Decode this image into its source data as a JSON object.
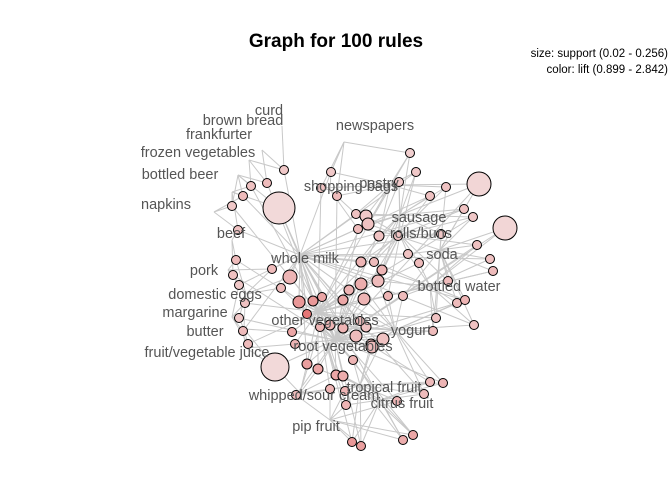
{
  "graph": {
    "title": "Graph for 100 rules",
    "legend": {
      "size": "size: support (0.02 - 0.256)",
      "color": "color: lift (0.899 - 2.842)"
    },
    "items": [
      "curd",
      "brown bread",
      "frankfurter",
      "frozen vegetables",
      "bottled beer",
      "napkins",
      "beef",
      "pork",
      "domestic eggs",
      "margarine",
      "butter",
      "fruit/vegetable juice",
      "whipped/sour cream",
      "pip fruit",
      "newspapers",
      "shopping bags",
      "pastry",
      "sausage",
      "rolls/buns",
      "soda",
      "bottled water",
      "yogurt",
      "tropical fruit",
      "citrus fruit",
      "whole milk",
      "other vegetables",
      "root vegetables"
    ],
    "colors": {
      "low_lift": "#f4e4e4",
      "high_lift": "#e05a5a",
      "edge": "#c8c8c8",
      "label": "#555555"
    }
  }
}
